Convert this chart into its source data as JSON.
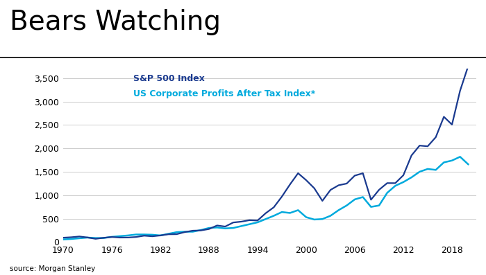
{
  "title": "Bears Watching",
  "source": "source: Morgan Stanley",
  "legend": [
    "S&P 500 Index",
    "US Corporate Profits After Tax Index*"
  ],
  "sp500_color": "#1a3a8f",
  "corp_color": "#00aadd",
  "background_color": "#ffffff",
  "ylim": [
    0,
    3700
  ],
  "yticks": [
    0,
    500,
    1000,
    1500,
    2000,
    2500,
    3000,
    3500
  ],
  "xlim": [
    1970,
    2021
  ],
  "xticks": [
    1970,
    1976,
    1982,
    1988,
    1994,
    2000,
    2006,
    2012,
    2018
  ],
  "sp500": {
    "years": [
      1970,
      1971,
      1972,
      1973,
      1974,
      1975,
      1976,
      1977,
      1978,
      1979,
      1980,
      1981,
      1982,
      1983,
      1984,
      1985,
      1986,
      1987,
      1988,
      1989,
      1990,
      1991,
      1992,
      1993,
      1994,
      1995,
      1996,
      1997,
      1998,
      1999,
      2000,
      2001,
      2002,
      2003,
      2004,
      2005,
      2006,
      2007,
      2008,
      2009,
      2010,
      2011,
      2012,
      2013,
      2014,
      2015,
      2016,
      2017,
      2018,
      2019,
      2020
    ],
    "values": [
      92,
      102,
      118,
      97,
      68,
      90,
      107,
      95,
      96,
      107,
      135,
      122,
      140,
      165,
      167,
      211,
      242,
      247,
      277,
      353,
      330,
      417,
      435,
      466,
      459,
      615,
      741,
      970,
      1229,
      1469,
      1320,
      1148,
      879,
      1112,
      1212,
      1248,
      1418,
      1468,
      903,
      1115,
      1258,
      1257,
      1426,
      1848,
      2059,
      2044,
      2239,
      2674,
      2507,
      3231,
      3756
    ]
  },
  "corp": {
    "years": [
      1970,
      1971,
      1972,
      1973,
      1974,
      1975,
      1976,
      1977,
      1978,
      1979,
      1980,
      1981,
      1982,
      1983,
      1984,
      1985,
      1986,
      1987,
      1988,
      1989,
      1990,
      1991,
      1992,
      1993,
      1994,
      1995,
      1996,
      1997,
      1998,
      1999,
      2000,
      2001,
      2002,
      2003,
      2004,
      2005,
      2006,
      2007,
      2008,
      2009,
      2010,
      2011,
      2012,
      2013,
      2014,
      2015,
      2016,
      2017,
      2018,
      2019,
      2020
    ],
    "values": [
      55,
      65,
      80,
      95,
      85,
      85,
      110,
      125,
      140,
      160,
      160,
      155,
      140,
      175,
      210,
      220,
      220,
      255,
      300,
      310,
      290,
      300,
      340,
      380,
      420,
      490,
      560,
      640,
      620,
      680,
      530,
      480,
      490,
      560,
      680,
      780,
      910,
      960,
      750,
      780,
      1050,
      1200,
      1280,
      1380,
      1500,
      1560,
      1540,
      1700,
      1740,
      1820,
      1660
    ]
  }
}
